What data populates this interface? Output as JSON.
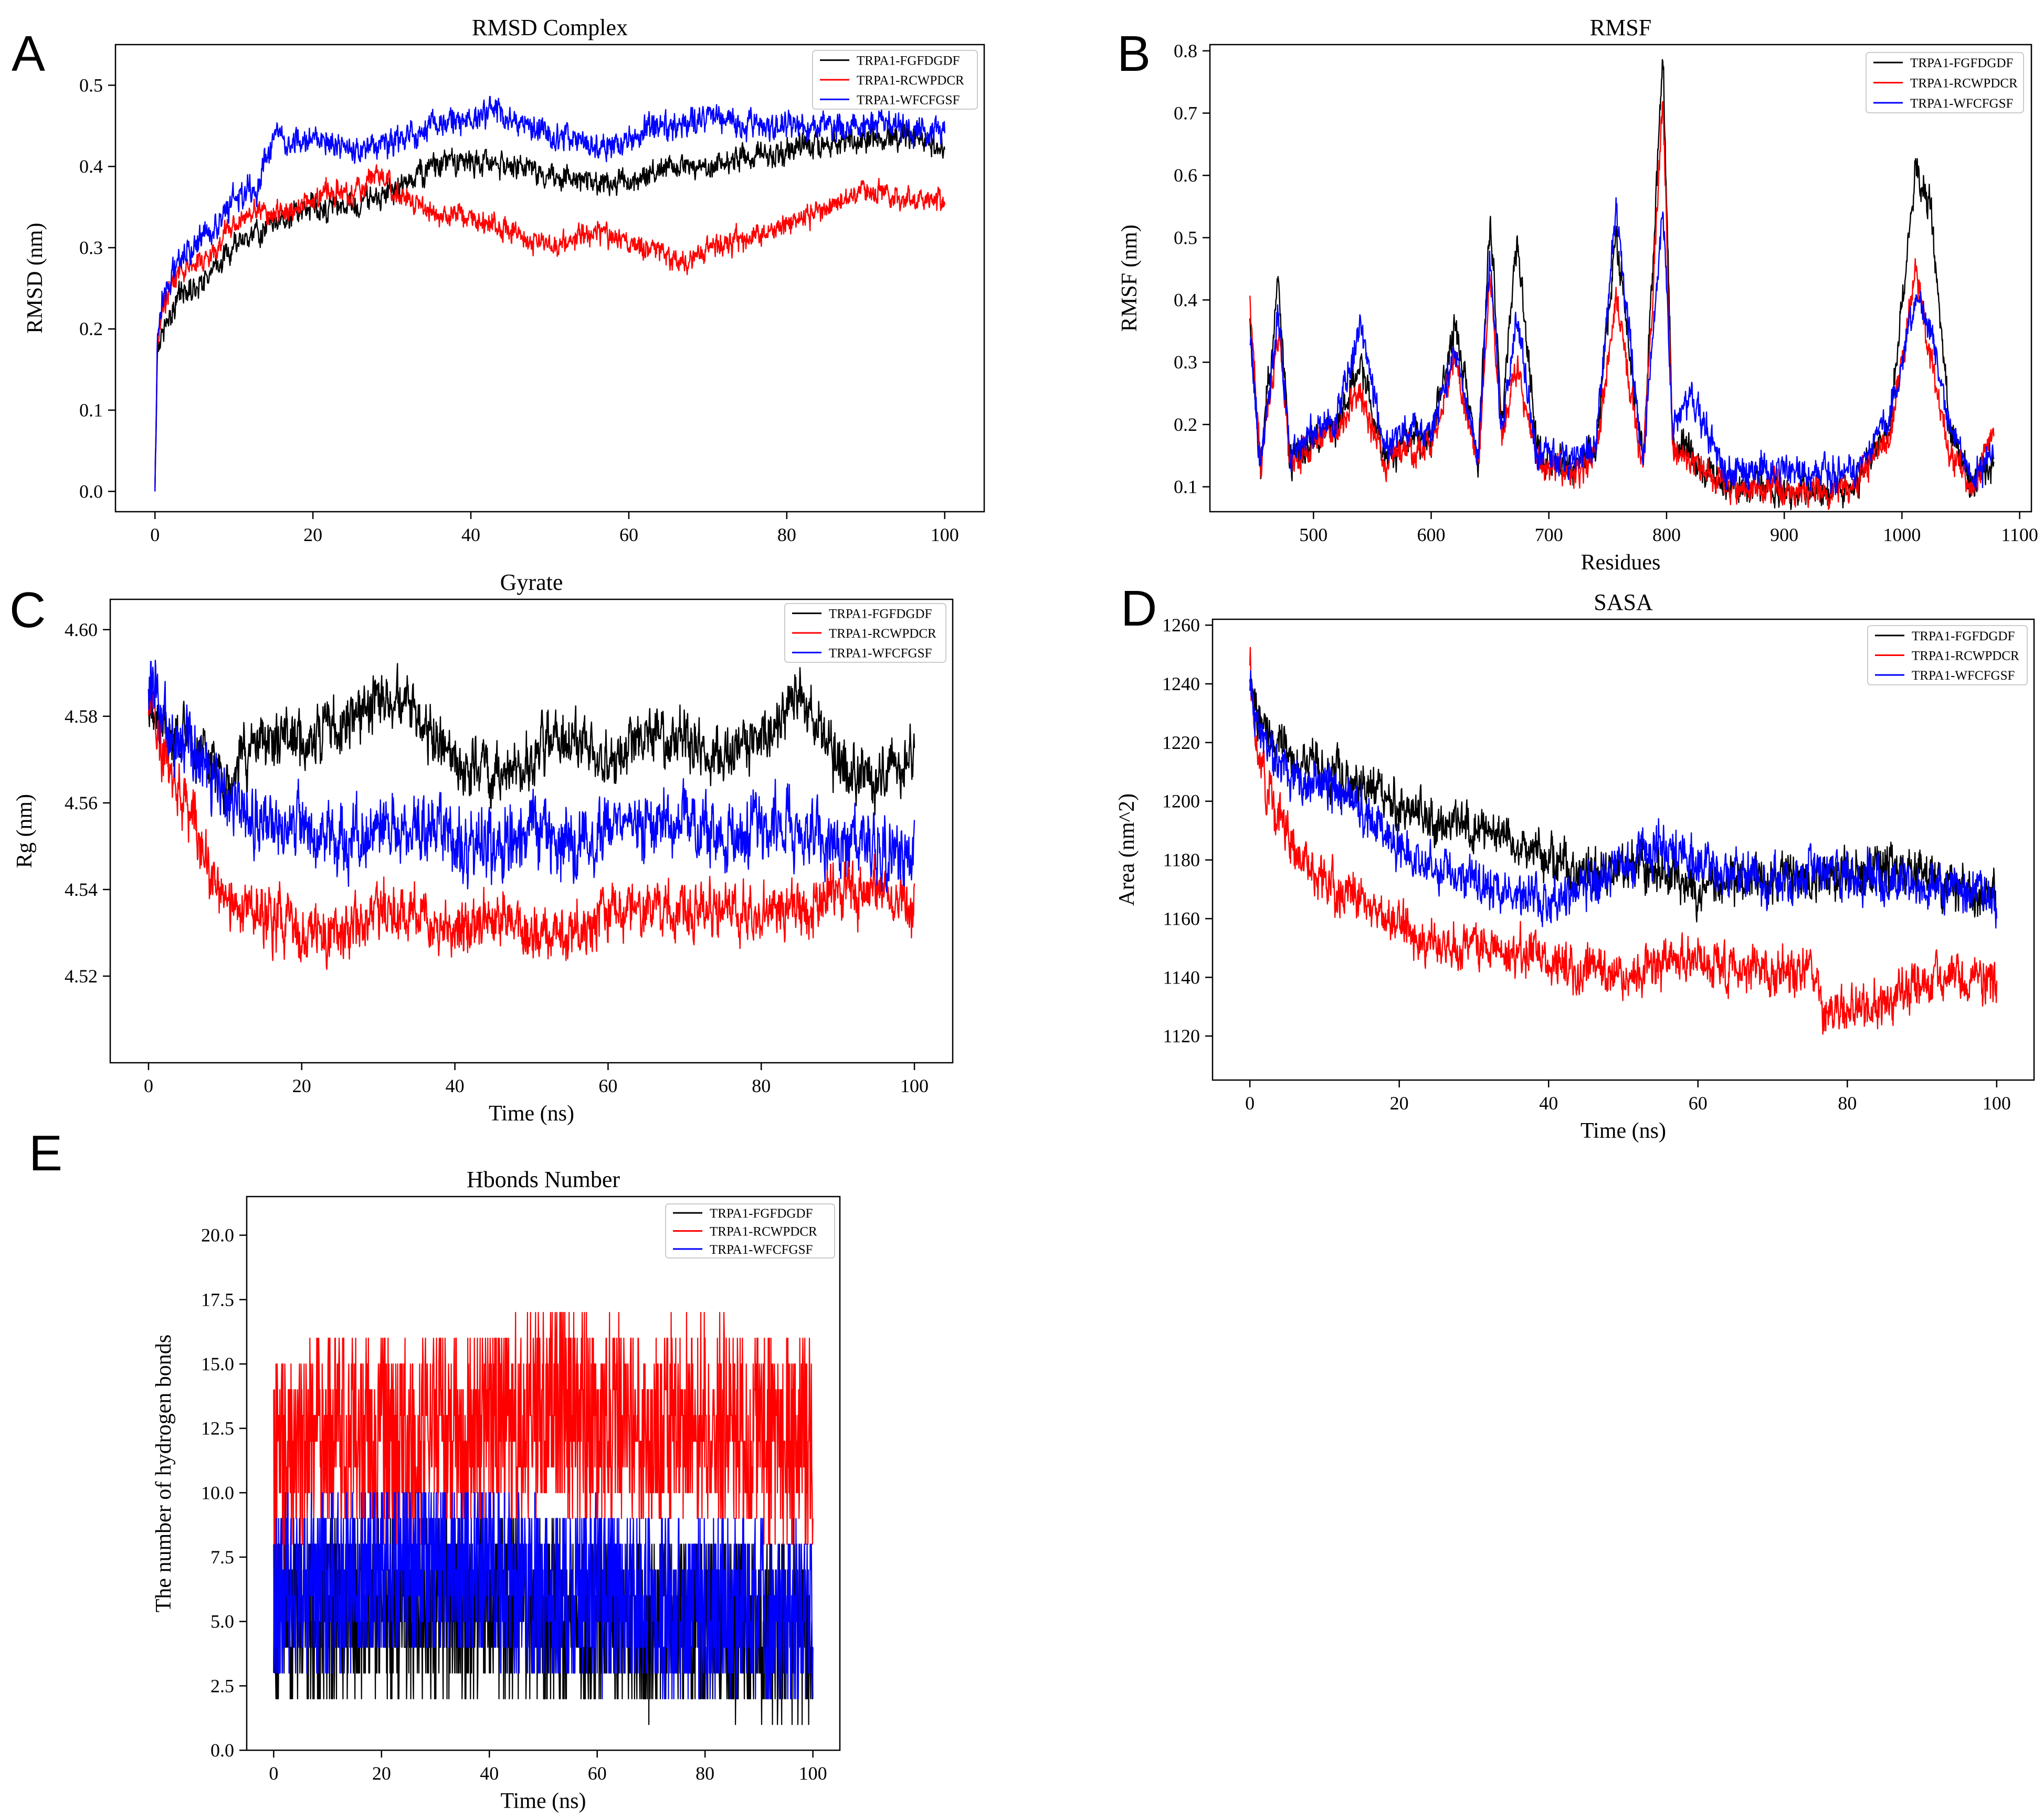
{
  "colors": {
    "series": [
      "#000000",
      "#ff0000",
      "#0000ff"
    ],
    "axis": "#000000",
    "background": "#ffffff"
  },
  "legend_labels": [
    "TRPA1-FGFDGDF",
    "TRPA1-RCWPDCR",
    "TRPA1-WFCFGSF"
  ],
  "chart_data": [
    {
      "panel_label": "A",
      "type": "line",
      "title": "RMSD Complex",
      "xlabel": "",
      "ylabel": "RMSD (nm)",
      "xlim": [
        -5,
        105
      ],
      "ylim": [
        -0.025,
        0.55
      ],
      "xticks": [
        0,
        20,
        40,
        60,
        80,
        100
      ],
      "xtick_labels": [
        "0",
        "20",
        "40",
        "60",
        "80",
        "100"
      ],
      "yticks": [
        0,
        0.1,
        0.2,
        0.3,
        0.4,
        0.5
      ],
      "ytick_labels": [
        "0.0",
        "0.1",
        "0.2",
        "0.3",
        "0.4",
        "0.5"
      ],
      "legend_position": "top-right",
      "grid": false,
      "series": [
        {
          "name": "TRPA1-FGFDGDF",
          "color": "#000000",
          "noise": 0.012,
          "x": [
            0,
            0.3,
            1,
            3,
            5,
            8,
            10,
            13,
            16,
            20,
            25,
            30,
            35,
            40,
            45,
            50,
            55,
            60,
            65,
            70,
            75,
            80,
            85,
            90,
            95,
            100
          ],
          "y": [
            0.0,
            0.17,
            0.2,
            0.24,
            0.25,
            0.28,
            0.3,
            0.32,
            0.33,
            0.35,
            0.35,
            0.37,
            0.4,
            0.41,
            0.4,
            0.39,
            0.38,
            0.38,
            0.4,
            0.4,
            0.41,
            0.42,
            0.43,
            0.43,
            0.44,
            0.42
          ]
        },
        {
          "name": "TRPA1-RCWPDCR",
          "color": "#ff0000",
          "noise": 0.011,
          "x": [
            0,
            0.3,
            1,
            3,
            5,
            8,
            10,
            13,
            16,
            20,
            25,
            28,
            32,
            36,
            40,
            45,
            50,
            55,
            60,
            63,
            66,
            70,
            75,
            80,
            85,
            90,
            95,
            100
          ],
          "y": [
            0.0,
            0.18,
            0.23,
            0.27,
            0.28,
            0.3,
            0.33,
            0.35,
            0.34,
            0.36,
            0.37,
            0.39,
            0.36,
            0.34,
            0.34,
            0.32,
            0.3,
            0.32,
            0.31,
            0.3,
            0.28,
            0.3,
            0.31,
            0.33,
            0.35,
            0.37,
            0.36,
            0.36
          ]
        },
        {
          "name": "TRPA1-WFCFGSF",
          "color": "#0000ff",
          "noise": 0.013,
          "x": [
            0,
            0.3,
            1,
            3,
            5,
            8,
            10,
            13,
            14,
            15,
            18,
            22,
            26,
            30,
            35,
            40,
            43,
            47,
            50,
            55,
            58,
            60,
            65,
            70,
            75,
            80,
            85,
            90,
            95,
            100
          ],
          "y": [
            0.0,
            0.2,
            0.24,
            0.28,
            0.3,
            0.33,
            0.36,
            0.37,
            0.41,
            0.43,
            0.43,
            0.43,
            0.42,
            0.43,
            0.45,
            0.46,
            0.47,
            0.45,
            0.44,
            0.43,
            0.42,
            0.44,
            0.45,
            0.46,
            0.45,
            0.45,
            0.45,
            0.45,
            0.45,
            0.44
          ]
        }
      ]
    },
    {
      "panel_label": "B",
      "type": "line",
      "title": "RMSF",
      "xlabel": "Residues",
      "ylabel": "RMSF (nm)",
      "xlim": [
        412,
        1110
      ],
      "ylim": [
        0.06,
        0.81
      ],
      "xticks": [
        500,
        600,
        700,
        800,
        900,
        1000,
        1100
      ],
      "xtick_labels": [
        "500",
        "600",
        "700",
        "800",
        "900",
        "1000",
        "1100"
      ],
      "yticks": [
        0.1,
        0.2,
        0.3,
        0.4,
        0.5,
        0.6,
        0.7,
        0.8
      ],
      "ytick_labels": [
        "0.1",
        "0.2",
        "0.3",
        "0.4",
        "0.5",
        "0.6",
        "0.7",
        "0.8"
      ],
      "legend_position": "top-right",
      "grid": false,
      "series": [
        {
          "name": "TRPA1-FGFDGDF",
          "color": "#000000",
          "noise": 0.02,
          "x": [
            446,
            455,
            470,
            480,
            500,
            520,
            540,
            560,
            580,
            600,
            620,
            640,
            650,
            660,
            673,
            690,
            720,
            740,
            757,
            780,
            797,
            805,
            820,
            850,
            880,
            920,
            960,
            990,
            1012,
            1025,
            1040,
            1060,
            1078
          ],
          "y": [
            0.36,
            0.12,
            0.43,
            0.14,
            0.18,
            0.2,
            0.3,
            0.15,
            0.18,
            0.17,
            0.36,
            0.14,
            0.54,
            0.2,
            0.5,
            0.15,
            0.13,
            0.16,
            0.5,
            0.14,
            0.79,
            0.18,
            0.15,
            0.1,
            0.1,
            0.09,
            0.1,
            0.2,
            0.62,
            0.55,
            0.2,
            0.1,
            0.14
          ]
        },
        {
          "name": "TRPA1-RCWPDCR",
          "color": "#ff0000",
          "noise": 0.018,
          "x": [
            446,
            455,
            470,
            480,
            500,
            520,
            540,
            560,
            580,
            600,
            620,
            640,
            650,
            660,
            673,
            690,
            720,
            740,
            757,
            780,
            797,
            805,
            820,
            850,
            880,
            920,
            960,
            990,
            1012,
            1025,
            1040,
            1060,
            1078
          ],
          "y": [
            0.39,
            0.13,
            0.35,
            0.14,
            0.17,
            0.19,
            0.25,
            0.14,
            0.16,
            0.16,
            0.3,
            0.13,
            0.45,
            0.18,
            0.3,
            0.14,
            0.12,
            0.15,
            0.4,
            0.13,
            0.72,
            0.17,
            0.14,
            0.1,
            0.1,
            0.09,
            0.1,
            0.18,
            0.45,
            0.3,
            0.15,
            0.1,
            0.2
          ]
        },
        {
          "name": "TRPA1-WFCFGSF",
          "color": "#0000ff",
          "noise": 0.02,
          "x": [
            446,
            455,
            470,
            480,
            500,
            520,
            540,
            560,
            580,
            600,
            620,
            640,
            650,
            660,
            673,
            690,
            720,
            740,
            757,
            780,
            797,
            805,
            820,
            850,
            880,
            920,
            960,
            990,
            1012,
            1025,
            1040,
            1060,
            1078
          ],
          "y": [
            0.35,
            0.13,
            0.38,
            0.15,
            0.19,
            0.21,
            0.36,
            0.16,
            0.2,
            0.18,
            0.32,
            0.15,
            0.47,
            0.19,
            0.37,
            0.15,
            0.14,
            0.17,
            0.54,
            0.14,
            0.55,
            0.19,
            0.25,
            0.12,
            0.13,
            0.12,
            0.12,
            0.22,
            0.4,
            0.35,
            0.2,
            0.11,
            0.16
          ]
        }
      ]
    },
    {
      "panel_label": "C",
      "type": "line",
      "title": "Gyrate",
      "xlabel": "Time (ns)",
      "ylabel": "Rg (nm)",
      "xlim": [
        -5,
        105
      ],
      "ylim": [
        4.5,
        4.607
      ],
      "xticks": [
        0,
        20,
        40,
        60,
        80,
        100
      ],
      "xtick_labels": [
        "0",
        "20",
        "40",
        "60",
        "80",
        "100"
      ],
      "yticks": [
        4.52,
        4.54,
        4.56,
        4.58,
        4.6
      ],
      "ytick_labels": [
        "4.52",
        "4.54",
        "4.56",
        "4.58",
        "4.60"
      ],
      "legend_position": "top-right",
      "grid": false,
      "series": [
        {
          "name": "TRPA1-FGFDGDF",
          "color": "#000000",
          "noise": 0.005,
          "x": [
            0,
            2,
            5,
            10,
            15,
            20,
            25,
            30,
            35,
            40,
            45,
            50,
            55,
            60,
            65,
            70,
            75,
            80,
            85,
            90,
            95,
            100
          ],
          "y": [
            4.58,
            4.575,
            4.575,
            4.565,
            4.575,
            4.575,
            4.578,
            4.585,
            4.58,
            4.57,
            4.565,
            4.57,
            4.575,
            4.57,
            4.575,
            4.575,
            4.57,
            4.575,
            4.585,
            4.57,
            4.565,
            4.57
          ]
        },
        {
          "name": "TRPA1-RCWPDCR",
          "color": "#ff0000",
          "noise": 0.005,
          "x": [
            0,
            2,
            5,
            8,
            12,
            15,
            20,
            25,
            30,
            35,
            40,
            45,
            50,
            55,
            60,
            65,
            70,
            75,
            80,
            85,
            90,
            95,
            100
          ],
          "y": [
            4.585,
            4.57,
            4.56,
            4.545,
            4.535,
            4.535,
            4.53,
            4.53,
            4.535,
            4.535,
            4.53,
            4.535,
            4.53,
            4.53,
            4.535,
            4.535,
            4.535,
            4.535,
            4.535,
            4.535,
            4.54,
            4.54,
            4.535
          ]
        },
        {
          "name": "TRPA1-WFCFGSF",
          "color": "#0000ff",
          "noise": 0.006,
          "x": [
            0,
            2,
            5,
            10,
            15,
            20,
            25,
            30,
            35,
            40,
            45,
            50,
            55,
            60,
            65,
            70,
            75,
            80,
            85,
            90,
            95,
            100
          ],
          "y": [
            4.585,
            4.58,
            4.575,
            4.56,
            4.555,
            4.555,
            4.55,
            4.555,
            4.555,
            4.55,
            4.55,
            4.555,
            4.55,
            4.555,
            4.555,
            4.555,
            4.55,
            4.555,
            4.555,
            4.55,
            4.55,
            4.545
          ]
        }
      ]
    },
    {
      "panel_label": "D",
      "type": "line",
      "title": "SASA",
      "xlabel": "Time (ns)",
      "ylabel": "Area (nm^2)",
      "xlim": [
        -5,
        105
      ],
      "ylim": [
        1105,
        1262
      ],
      "xticks": [
        0,
        20,
        40,
        60,
        80,
        100
      ],
      "xtick_labels": [
        "0",
        "20",
        "40",
        "60",
        "80",
        "100"
      ],
      "yticks": [
        1120,
        1140,
        1160,
        1180,
        1200,
        1220,
        1240,
        1260
      ],
      "ytick_labels": [
        "1120",
        "1140",
        "1160",
        "1180",
        "1200",
        "1220",
        "1240",
        "1260"
      ],
      "legend_position": "top-right",
      "grid": false,
      "series": [
        {
          "name": "TRPA1-FGFDGDF",
          "color": "#000000",
          "noise": 6,
          "x": [
            0,
            1,
            3,
            6,
            10,
            15,
            20,
            25,
            30,
            35,
            40,
            45,
            50,
            55,
            60,
            65,
            70,
            75,
            80,
            85,
            90,
            95,
            100
          ],
          "y": [
            1245,
            1230,
            1222,
            1215,
            1210,
            1205,
            1198,
            1192,
            1192,
            1188,
            1180,
            1175,
            1178,
            1176,
            1170,
            1172,
            1175,
            1174,
            1175,
            1178,
            1176,
            1170,
            1165
          ]
        },
        {
          "name": "TRPA1-RCWPDCR",
          "color": "#ff0000",
          "noise": 6,
          "x": [
            0,
            1,
            3,
            6,
            10,
            15,
            20,
            25,
            30,
            35,
            40,
            45,
            50,
            55,
            60,
            65,
            70,
            75,
            77,
            80,
            85,
            90,
            95,
            100
          ],
          "y": [
            1245,
            1215,
            1200,
            1185,
            1172,
            1165,
            1158,
            1152,
            1150,
            1148,
            1145,
            1143,
            1140,
            1145,
            1145,
            1143,
            1140,
            1143,
            1130,
            1128,
            1132,
            1138,
            1140,
            1138
          ]
        },
        {
          "name": "TRPA1-WFCFGSF",
          "color": "#0000ff",
          "noise": 6,
          "x": [
            0,
            1,
            3,
            6,
            10,
            15,
            20,
            25,
            30,
            35,
            40,
            45,
            50,
            55,
            60,
            65,
            70,
            75,
            80,
            85,
            90,
            95,
            100
          ],
          "y": [
            1240,
            1225,
            1215,
            1208,
            1205,
            1198,
            1185,
            1178,
            1172,
            1168,
            1165,
            1172,
            1178,
            1185,
            1178,
            1175,
            1172,
            1175,
            1175,
            1172,
            1172,
            1170,
            1165
          ]
        }
      ]
    },
    {
      "panel_label": "E",
      "type": "line",
      "title": "Hbonds Number",
      "xlabel": "Time (ns)",
      "ylabel": "The number of hydrogen bonds",
      "xlim": [
        -5,
        105
      ],
      "ylim": [
        0,
        21.5
      ],
      "xticks": [
        0,
        20,
        40,
        60,
        80,
        100
      ],
      "xtick_labels": [
        "0",
        "20",
        "40",
        "60",
        "80",
        "100"
      ],
      "yticks": [
        0,
        2.5,
        5,
        7.5,
        10,
        12.5,
        15,
        17.5,
        20
      ],
      "ytick_labels": [
        "0.0",
        "2.5",
        "5.0",
        "7.5",
        "10.0",
        "12.5",
        "15.0",
        "17.5",
        "20.0"
      ],
      "legend_position": "top-right",
      "grid": false,
      "discrete": true,
      "series": [
        {
          "name": "TRPA1-FGFDGDF",
          "color": "#000000",
          "noise": 2.2,
          "x": [
            0,
            20,
            40,
            60,
            80,
            100
          ],
          "y": [
            5,
            5.5,
            5.5,
            5,
            5,
            4.5
          ]
        },
        {
          "name": "TRPA1-RCWPDCR",
          "color": "#ff0000",
          "noise": 2.5,
          "x": [
            0,
            5,
            10,
            20,
            30,
            40,
            50,
            60,
            70,
            80,
            90,
            100
          ],
          "y": [
            11,
            11.5,
            12.5,
            12,
            12.5,
            12.5,
            13.5,
            13,
            12.5,
            13,
            12,
            12
          ]
        },
        {
          "name": "TRPA1-WFCFGSF",
          "color": "#0000ff",
          "noise": 2.2,
          "x": [
            0,
            10,
            20,
            30,
            40,
            50,
            60,
            70,
            80,
            90,
            100
          ],
          "y": [
            6,
            6.5,
            7,
            7,
            7,
            6,
            6,
            6,
            5.5,
            5.5,
            5
          ]
        }
      ]
    }
  ]
}
